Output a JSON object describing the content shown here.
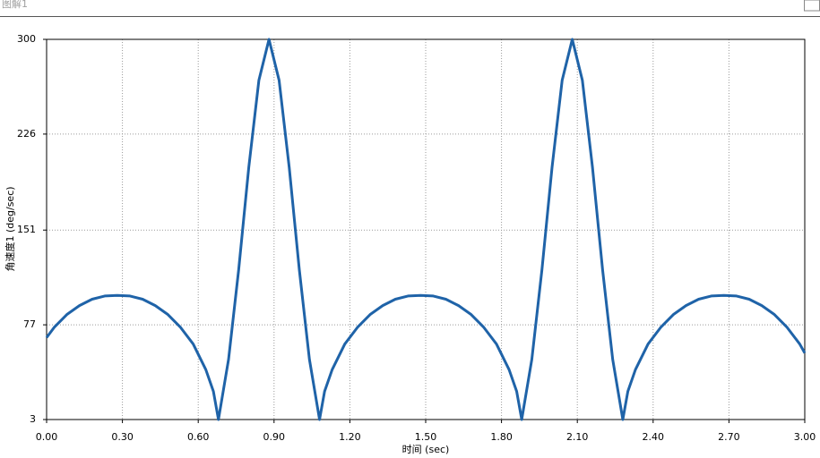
{
  "window": {
    "title": "图解1"
  },
  "chart_data": {
    "type": "line",
    "x_label": "时间 (sec)",
    "y_label": "角速度1 (deg/sec)",
    "x": [
      0.0,
      0.03,
      0.08,
      0.13,
      0.18,
      0.23,
      0.28,
      0.33,
      0.38,
      0.43,
      0.48,
      0.53,
      0.58,
      0.63,
      0.66,
      0.68,
      0.72,
      0.76,
      0.8,
      0.84,
      0.88,
      0.92,
      0.96,
      1.0,
      1.04,
      1.08,
      1.1,
      1.13,
      1.18,
      1.23,
      1.28,
      1.33,
      1.38,
      1.43,
      1.48,
      1.53,
      1.58,
      1.63,
      1.68,
      1.73,
      1.78,
      1.83,
      1.86,
      1.88,
      1.92,
      1.96,
      2.0,
      2.04,
      2.08,
      2.12,
      2.16,
      2.2,
      2.24,
      2.28,
      2.3,
      2.33,
      2.38,
      2.43,
      2.48,
      2.53,
      2.58,
      2.63,
      2.68,
      2.73,
      2.78,
      2.83,
      2.88,
      2.93,
      2.98,
      3.0
    ],
    "series": [
      {
        "name": "角速度1",
        "color": "#1f63a8",
        "values": [
          67,
          75,
          85,
          92,
          97,
          99.5,
          100,
          99.5,
          97,
          92,
          85,
          75,
          62,
          42,
          25,
          3,
          50,
          120,
          200,
          268,
          300,
          268,
          200,
          120,
          50,
          3,
          25,
          42,
          62,
          75,
          85,
          92,
          97,
          99.5,
          100,
          99.5,
          97,
          92,
          85,
          75,
          62,
          42,
          25,
          3,
          50,
          120,
          200,
          268,
          300,
          268,
          200,
          120,
          50,
          3,
          25,
          42,
          62,
          75,
          85,
          92,
          97,
          99.5,
          100,
          99.5,
          97,
          92,
          85,
          75,
          62,
          55
        ]
      }
    ],
    "xlim": [
      0,
      3
    ],
    "ylim": [
      3,
      300
    ],
    "xticks": [
      {
        "value": 0,
        "label": "0.00"
      },
      {
        "value": 0.3,
        "label": "0.30"
      },
      {
        "value": 0.6,
        "label": "0.60"
      },
      {
        "value": 0.9,
        "label": "0.90"
      },
      {
        "value": 1.2,
        "label": "1.20"
      },
      {
        "value": 1.5,
        "label": "1.50"
      },
      {
        "value": 1.8,
        "label": "1.80"
      },
      {
        "value": 2.1,
        "label": "2.10"
      },
      {
        "value": 2.4,
        "label": "2.40"
      },
      {
        "value": 2.7,
        "label": "2.70"
      },
      {
        "value": 3,
        "label": "3.00"
      }
    ],
    "yticks": [
      3,
      77,
      151,
      226,
      300
    ],
    "grid": true
  }
}
